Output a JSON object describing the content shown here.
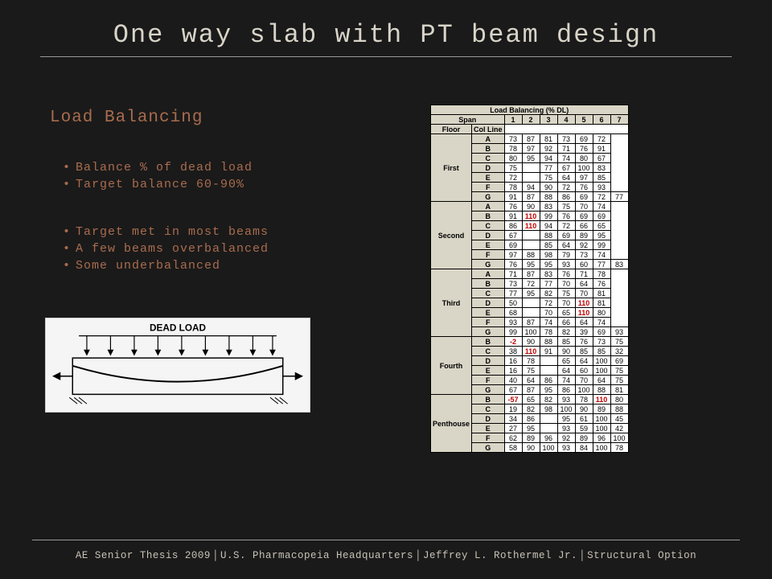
{
  "title": "One way slab with PT beam design",
  "section_title": "Load Balancing",
  "bullets_a": [
    "Balance % of dead load",
    "Target balance 60-90%"
  ],
  "bullets_b": [
    "Target met in most beams",
    "A few beams overbalanced",
    "Some underbalanced"
  ],
  "figure_label": "DEAD LOAD",
  "table": {
    "title": "Load Balancing (% DL)",
    "span_label": "Span",
    "span_nums": [
      "1",
      "2",
      "3",
      "4",
      "5",
      "6",
      "7"
    ],
    "floor_label": "Floor",
    "colline_label": "Col Line",
    "floors": [
      {
        "name": "First",
        "blank7": true,
        "rows": [
          {
            "line": "A",
            "v": [
              "73",
              "87",
              "81",
              "73",
              "69",
              "72",
              ""
            ]
          },
          {
            "line": "B",
            "v": [
              "78",
              "97",
              "92",
              "71",
              "76",
              "91",
              ""
            ]
          },
          {
            "line": "C",
            "v": [
              "80",
              "95",
              "94",
              "74",
              "80",
              "67",
              ""
            ]
          },
          {
            "line": "D",
            "v": [
              "75",
              "",
              "77",
              "67",
              "100",
              "83",
              ""
            ]
          },
          {
            "line": "E",
            "v": [
              "72",
              "",
              "75",
              "64",
              "97",
              "85",
              ""
            ]
          },
          {
            "line": "F",
            "v": [
              "78",
              "94",
              "90",
              "72",
              "76",
              "93",
              ""
            ]
          },
          {
            "line": "G",
            "v": [
              "91",
              "87",
              "88",
              "86",
              "69",
              "72",
              "77"
            ]
          }
        ]
      },
      {
        "name": "Second",
        "blank7": true,
        "rows": [
          {
            "line": "A",
            "v": [
              "76",
              "90",
              "83",
              "75",
              "70",
              "74",
              ""
            ]
          },
          {
            "line": "B",
            "v": [
              "91",
              "110",
              "99",
              "76",
              "69",
              "69",
              ""
            ]
          },
          {
            "line": "C",
            "v": [
              "86",
              "110",
              "94",
              "72",
              "66",
              "65",
              ""
            ]
          },
          {
            "line": "D",
            "v": [
              "67",
              "",
              "88",
              "69",
              "89",
              "95",
              ""
            ]
          },
          {
            "line": "E",
            "v": [
              "69",
              "",
              "85",
              "64",
              "92",
              "99",
              ""
            ]
          },
          {
            "line": "F",
            "v": [
              "97",
              "88",
              "98",
              "79",
              "73",
              "74",
              ""
            ]
          },
          {
            "line": "G",
            "v": [
              "76",
              "95",
              "95",
              "93",
              "60",
              "77",
              "83"
            ]
          }
        ]
      },
      {
        "name": "Third",
        "blank7": true,
        "rows": [
          {
            "line": "A",
            "v": [
              "71",
              "87",
              "83",
              "76",
              "71",
              "78",
              ""
            ]
          },
          {
            "line": "B",
            "v": [
              "73",
              "72",
              "77",
              "70",
              "64",
              "76",
              ""
            ]
          },
          {
            "line": "C",
            "v": [
              "77",
              "95",
              "82",
              "75",
              "70",
              "81",
              ""
            ]
          },
          {
            "line": "D",
            "v": [
              "50",
              "",
              "72",
              "70",
              "110",
              "81",
              ""
            ]
          },
          {
            "line": "E",
            "v": [
              "68",
              "",
              "70",
              "65",
              "110",
              "80",
              ""
            ]
          },
          {
            "line": "F",
            "v": [
              "93",
              "87",
              "74",
              "66",
              "64",
              "74",
              ""
            ]
          },
          {
            "line": "G",
            "v": [
              "99",
              "100",
              "78",
              "82",
              "39",
              "69",
              "93"
            ]
          }
        ]
      },
      {
        "name": "Fourth",
        "blank7": false,
        "rows": [
          {
            "line": "B",
            "v": [
              "-2",
              "90",
              "88",
              "85",
              "76",
              "73",
              "75"
            ]
          },
          {
            "line": "C",
            "v": [
              "38",
              "110",
              "91",
              "90",
              "85",
              "85",
              "32"
            ]
          },
          {
            "line": "D",
            "v": [
              "16",
              "78",
              "",
              "65",
              "64",
              "100",
              "69"
            ]
          },
          {
            "line": "E",
            "v": [
              "16",
              "75",
              "",
              "64",
              "60",
              "100",
              "75"
            ]
          },
          {
            "line": "F",
            "v": [
              "40",
              "64",
              "86",
              "74",
              "70",
              "64",
              "75"
            ]
          },
          {
            "line": "G",
            "v": [
              "67",
              "87",
              "95",
              "86",
              "100",
              "88",
              "81"
            ]
          }
        ]
      },
      {
        "name": "Penthouse",
        "blank7": false,
        "rows": [
          {
            "line": "B",
            "v": [
              "-57",
              "65",
              "82",
              "93",
              "78",
              "110",
              "80"
            ]
          },
          {
            "line": "C",
            "v": [
              "19",
              "82",
              "98",
              "100",
              "90",
              "89",
              "88"
            ]
          },
          {
            "line": "D",
            "v": [
              "34",
              "86",
              "",
              "95",
              "61",
              "100",
              "45"
            ]
          },
          {
            "line": "E",
            "v": [
              "27",
              "95",
              "",
              "93",
              "59",
              "100",
              "42"
            ]
          },
          {
            "line": "F",
            "v": [
              "62",
              "89",
              "96",
              "92",
              "89",
              "96",
              "100"
            ]
          },
          {
            "line": "G",
            "v": [
              "58",
              "90",
              "100",
              "93",
              "84",
              "100",
              "78"
            ]
          }
        ]
      }
    ],
    "highlight_red_threshold_low": 0,
    "highlight_red_threshold_high": 100,
    "red_color": "#c00000"
  },
  "footer": {
    "parts": [
      "AE Senior Thesis 2009",
      "U.S. Pharmacopeia Headquarters",
      "Jeffrey L. Rothermel Jr.",
      "Structural Option"
    ]
  }
}
